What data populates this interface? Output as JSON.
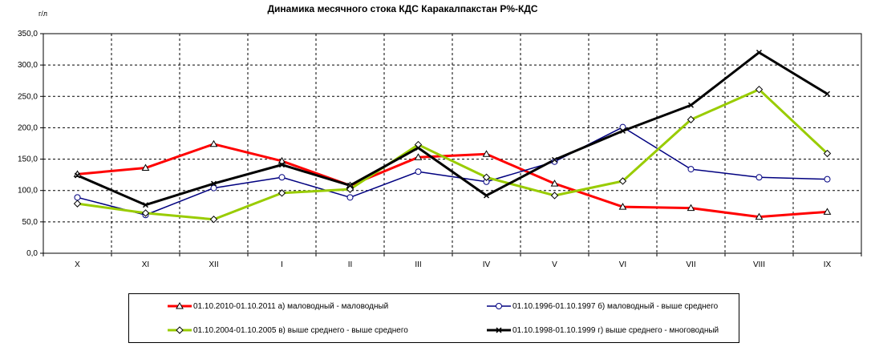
{
  "chart_data": {
    "type": "line",
    "title": "Динамика месячного стока КДС  Каракалпакстан Р%-КДС",
    "ylabel": "г/л",
    "xlabel": "",
    "ylim": [
      0,
      350
    ],
    "yticks": [
      "0,0",
      "50,0",
      "100,0",
      "150,0",
      "200,0",
      "250,0",
      "300,0",
      "350,0"
    ],
    "categories": [
      "X",
      "XI",
      "XII",
      "I",
      "II",
      "III",
      "IV",
      "V",
      "VI",
      "VII",
      "VIII",
      "IX"
    ],
    "grid": true,
    "legend_position": "bottom",
    "series": [
      {
        "name": "01.10.2010-01.10.2011 а) маловодный - маловодный",
        "color": "#ff0000",
        "marker": "triangle",
        "values": [
          126,
          136,
          174,
          147,
          108,
          153,
          158,
          111,
          74,
          72,
          58,
          66
        ]
      },
      {
        "name": "01.10.1996-01.10.1997 б) маловодный - выше  среднего",
        "color": "#000080",
        "marker": "circle",
        "values": [
          89,
          61,
          104,
          121,
          89,
          130,
          114,
          146,
          201,
          134,
          121,
          118
        ]
      },
      {
        "name": "01.10.2004-01.10.2005 в) выше  среднего - выше  среднего",
        "color": "#99cc00",
        "marker": "diamond",
        "values": [
          79,
          64,
          54,
          96,
          102,
          173,
          121,
          92,
          115,
          213,
          261,
          159
        ]
      },
      {
        "name": "01.10.1998-01.10.1999 г) выше  среднего - многоводный",
        "color": "#000000",
        "marker": "x",
        "values": [
          124,
          77,
          111,
          141,
          108,
          168,
          92,
          149,
          195,
          236,
          320,
          254
        ]
      }
    ]
  }
}
